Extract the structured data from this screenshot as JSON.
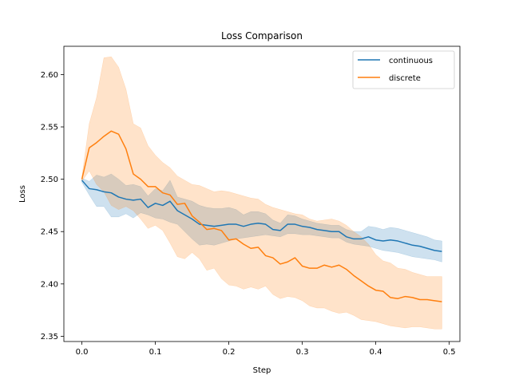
{
  "chart_data": {
    "type": "line",
    "title": "Loss Comparison",
    "xlabel": "Step",
    "ylabel": "Loss",
    "xlim": [
      -0.0245,
      0.5145
    ],
    "ylim": [
      2.345,
      2.627
    ],
    "xticks": [
      0.0,
      0.1,
      0.2,
      0.3,
      0.4,
      0.5
    ],
    "xtick_labels": [
      "0.0",
      "0.1",
      "0.2",
      "0.3",
      "0.4",
      "0.5"
    ],
    "yticks": [
      2.35,
      2.4,
      2.45,
      2.5,
      2.55,
      2.6
    ],
    "ytick_labels": [
      "2.35",
      "2.40",
      "2.45",
      "2.50",
      "2.55",
      "2.60"
    ],
    "grid": false,
    "legend_position": "top-right",
    "x": [
      0.0,
      0.01,
      0.02,
      0.03,
      0.04,
      0.05,
      0.06,
      0.07,
      0.08,
      0.09,
      0.1,
      0.11,
      0.12,
      0.13,
      0.14,
      0.15,
      0.16,
      0.17,
      0.18,
      0.19,
      0.2,
      0.21,
      0.22,
      0.23,
      0.24,
      0.25,
      0.26,
      0.27,
      0.28,
      0.29,
      0.3,
      0.31,
      0.32,
      0.33,
      0.34,
      0.35,
      0.36,
      0.37,
      0.38,
      0.39,
      0.4,
      0.41,
      0.42,
      0.43,
      0.44,
      0.45,
      0.46,
      0.47,
      0.48,
      0.49
    ],
    "series": [
      {
        "name": "continuous",
        "color": "#1f77b4",
        "values": [
          2.499,
          2.491,
          2.49,
          2.488,
          2.487,
          2.483,
          2.481,
          2.48,
          2.481,
          2.473,
          2.477,
          2.475,
          2.479,
          2.47,
          2.466,
          2.462,
          2.457,
          2.456,
          2.455,
          2.456,
          2.457,
          2.457,
          2.455,
          2.457,
          2.458,
          2.457,
          2.452,
          2.451,
          2.457,
          2.457,
          2.455,
          2.454,
          2.452,
          2.451,
          2.45,
          2.45,
          2.445,
          2.443,
          2.443,
          2.445,
          2.442,
          2.441,
          2.442,
          2.441,
          2.439,
          2.437,
          2.436,
          2.434,
          2.432,
          2.431
        ],
        "lower": [
          2.497,
          2.485,
          2.474,
          2.474,
          2.464,
          2.464,
          2.467,
          2.463,
          2.468,
          2.466,
          2.463,
          2.462,
          2.459,
          2.457,
          2.45,
          2.443,
          2.437,
          2.438,
          2.437,
          2.439,
          2.441,
          2.443,
          2.444,
          2.445,
          2.446,
          2.447,
          2.446,
          2.445,
          2.448,
          2.448,
          2.447,
          2.447,
          2.446,
          2.445,
          2.444,
          2.444,
          2.44,
          2.438,
          2.437,
          2.436,
          2.434,
          2.432,
          2.431,
          2.43,
          2.428,
          2.426,
          2.425,
          2.424,
          2.423,
          2.421
        ],
        "upper": [
          2.501,
          2.498,
          2.504,
          2.502,
          2.505,
          2.5,
          2.494,
          2.495,
          2.493,
          2.484,
          2.491,
          2.489,
          2.499,
          2.483,
          2.481,
          2.479,
          2.475,
          2.473,
          2.472,
          2.472,
          2.473,
          2.471,
          2.466,
          2.469,
          2.469,
          2.467,
          2.461,
          2.458,
          2.466,
          2.465,
          2.462,
          2.46,
          2.458,
          2.457,
          2.456,
          2.456,
          2.452,
          2.45,
          2.45,
          2.455,
          2.454,
          2.452,
          2.454,
          2.453,
          2.451,
          2.449,
          2.447,
          2.445,
          2.442,
          2.441
        ]
      },
      {
        "name": "discrete",
        "color": "#ff7f0e",
        "values": [
          2.5,
          2.53,
          2.535,
          2.541,
          2.546,
          2.543,
          2.529,
          2.505,
          2.5,
          2.493,
          2.493,
          2.487,
          2.485,
          2.476,
          2.477,
          2.465,
          2.459,
          2.452,
          2.453,
          2.451,
          2.442,
          2.443,
          2.438,
          2.434,
          2.435,
          2.427,
          2.425,
          2.419,
          2.421,
          2.425,
          2.417,
          2.415,
          2.415,
          2.418,
          2.416,
          2.418,
          2.414,
          2.408,
          2.403,
          2.398,
          2.394,
          2.393,
          2.387,
          2.386,
          2.388,
          2.387,
          2.385,
          2.385,
          2.384,
          2.383
        ],
        "lower": [
          2.498,
          2.508,
          2.495,
          2.488,
          2.475,
          2.471,
          2.474,
          2.47,
          2.462,
          2.453,
          2.456,
          2.451,
          2.439,
          2.426,
          2.424,
          2.43,
          2.424,
          2.413,
          2.415,
          2.405,
          2.399,
          2.398,
          2.395,
          2.397,
          2.395,
          2.398,
          2.39,
          2.386,
          2.388,
          2.387,
          2.384,
          2.379,
          2.377,
          2.377,
          2.374,
          2.372,
          2.373,
          2.37,
          2.366,
          2.365,
          2.364,
          2.362,
          2.36,
          2.359,
          2.358,
          2.359,
          2.359,
          2.358,
          2.357,
          2.357
        ],
        "upper": [
          2.502,
          2.553,
          2.578,
          2.616,
          2.617,
          2.607,
          2.586,
          2.553,
          2.549,
          2.532,
          2.523,
          2.516,
          2.511,
          2.503,
          2.499,
          2.495,
          2.494,
          2.491,
          2.488,
          2.489,
          2.488,
          2.486,
          2.484,
          2.482,
          2.481,
          2.476,
          2.473,
          2.471,
          2.469,
          2.467,
          2.466,
          2.462,
          2.46,
          2.461,
          2.462,
          2.46,
          2.456,
          2.45,
          2.445,
          2.438,
          2.428,
          2.422,
          2.42,
          2.415,
          2.414,
          2.411,
          2.409,
          2.407,
          2.407,
          2.407
        ]
      }
    ]
  }
}
